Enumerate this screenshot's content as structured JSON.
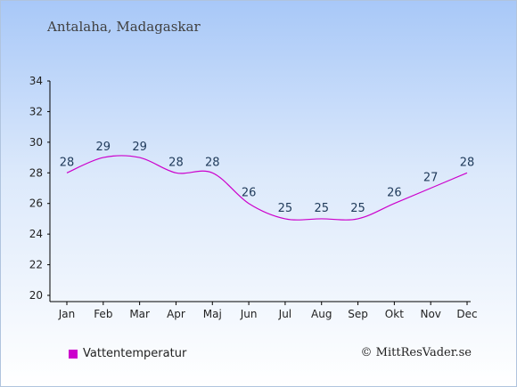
{
  "location_title": "Antalaha, Madagaskar",
  "credit": "© MittResVader.se",
  "chart_data": {
    "type": "line",
    "categories": [
      "Jan",
      "Feb",
      "Mar",
      "Apr",
      "Maj",
      "Jun",
      "Jul",
      "Aug",
      "Sep",
      "Okt",
      "Nov",
      "Dec"
    ],
    "series": [
      {
        "name": "Vattentemperatur",
        "values": [
          28,
          29,
          29,
          28,
          28,
          26,
          25,
          25,
          25,
          26,
          27,
          28
        ],
        "color": "#cc00cc"
      }
    ],
    "ylim": [
      20,
      34
    ],
    "yticks": [
      20,
      22,
      24,
      26,
      28,
      30,
      32,
      34
    ],
    "legend_position": "bottom-left",
    "grid": false
  }
}
